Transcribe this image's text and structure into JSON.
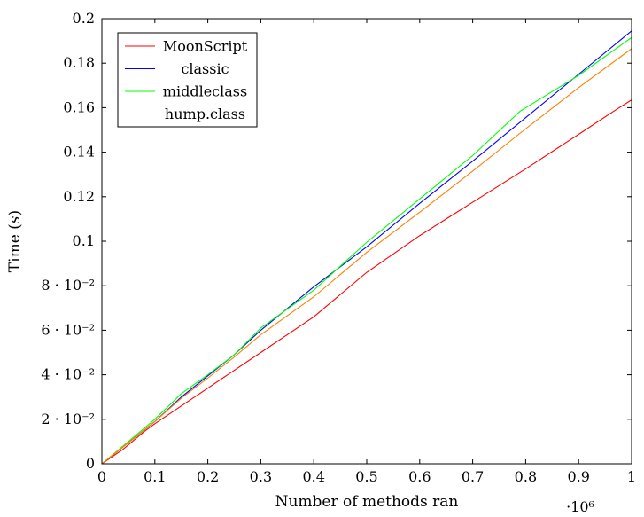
{
  "chart_data": {
    "type": "line",
    "title": "",
    "xlabel": "Number of methods ran",
    "ylabel": "Time (s)",
    "x_exponent_label": "·10⁶",
    "xlim": [
      0,
      1000000
    ],
    "ylim": [
      0,
      0.2
    ],
    "x_ticks": [
      0,
      100000,
      200000,
      300000,
      400000,
      500000,
      600000,
      700000,
      800000,
      900000,
      1000000
    ],
    "x_tick_labels": [
      "0",
      "0.1",
      "0.2",
      "0.3",
      "0.4",
      "0.5",
      "0.6",
      "0.7",
      "0.8",
      "0.9",
      "1"
    ],
    "y_ticks": [
      0,
      0.02,
      0.04,
      0.06,
      0.08,
      0.1,
      0.12,
      0.14,
      0.16,
      0.18,
      0.2
    ],
    "y_tick_labels": [
      "0",
      "2 · 10⁻²",
      "4 · 10⁻²",
      "6 · 10⁻²",
      "8 · 10⁻²",
      "0.1",
      "0.12",
      "0.14",
      "0.16",
      "0.18",
      "0.2"
    ],
    "grid": false,
    "legend_position": "top-left",
    "series": [
      {
        "name": "MoonScript",
        "color": "#ff0000",
        "points": [
          [
            0,
            0
          ],
          [
            40000,
            0.0065
          ],
          [
            80000,
            0.0145
          ],
          [
            100000,
            0.018
          ],
          [
            200000,
            0.034
          ],
          [
            300000,
            0.05
          ],
          [
            400000,
            0.066
          ],
          [
            500000,
            0.086
          ],
          [
            600000,
            0.1025
          ],
          [
            700000,
            0.1175
          ],
          [
            800000,
            0.1325
          ],
          [
            900000,
            0.148
          ],
          [
            970000,
            0.159
          ],
          [
            1000000,
            0.1635
          ]
        ]
      },
      {
        "name": "classic",
        "color": "#0000ff",
        "points": [
          [
            0,
            0
          ],
          [
            50000,
            0.0095
          ],
          [
            100000,
            0.019
          ],
          [
            150000,
            0.03
          ],
          [
            200000,
            0.0395
          ],
          [
            250000,
            0.049
          ],
          [
            300000,
            0.06
          ],
          [
            400000,
            0.0795
          ],
          [
            500000,
            0.0975
          ],
          [
            600000,
            0.117
          ],
          [
            700000,
            0.136
          ],
          [
            800000,
            0.1555
          ],
          [
            900000,
            0.175
          ],
          [
            1000000,
            0.1945
          ]
        ]
      },
      {
        "name": "middleclass",
        "color": "#00ff00",
        "points": [
          [
            0,
            0
          ],
          [
            50000,
            0.01
          ],
          [
            100000,
            0.02
          ],
          [
            150000,
            0.0315
          ],
          [
            200000,
            0.04
          ],
          [
            250000,
            0.049
          ],
          [
            300000,
            0.061
          ],
          [
            400000,
            0.078
          ],
          [
            500000,
            0.0995
          ],
          [
            600000,
            0.119
          ],
          [
            700000,
            0.1385
          ],
          [
            790000,
            0.1585
          ],
          [
            900000,
            0.1745
          ],
          [
            1000000,
            0.1915
          ]
        ]
      },
      {
        "name": "hump.class",
        "color": "#ff8000",
        "points": [
          [
            0,
            0
          ],
          [
            50000,
            0.0095
          ],
          [
            100000,
            0.019
          ],
          [
            150000,
            0.0295
          ],
          [
            200000,
            0.0385
          ],
          [
            250000,
            0.048
          ],
          [
            300000,
            0.058
          ],
          [
            400000,
            0.075
          ],
          [
            500000,
            0.095
          ],
          [
            600000,
            0.113
          ],
          [
            700000,
            0.1315
          ],
          [
            800000,
            0.1505
          ],
          [
            900000,
            0.169
          ],
          [
            1000000,
            0.1865
          ]
        ]
      }
    ]
  }
}
